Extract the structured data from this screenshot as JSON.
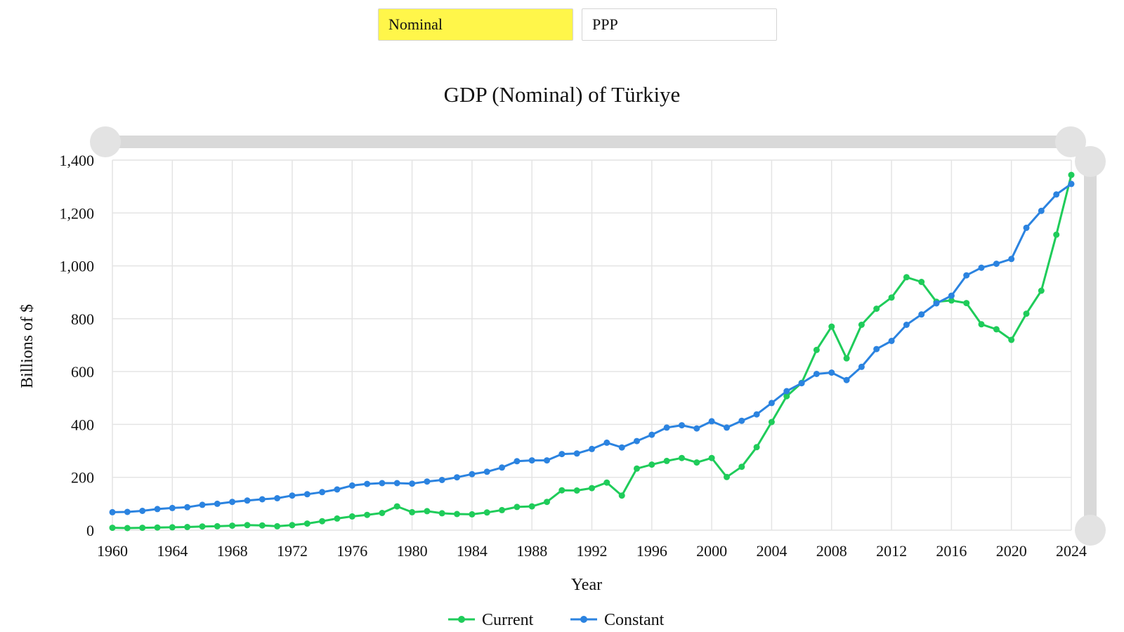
{
  "tabs": [
    {
      "label": "Nominal",
      "active": true
    },
    {
      "label": "PPP",
      "active": false
    }
  ],
  "chart_data": {
    "type": "line",
    "title": "GDP (Nominal) of Türkiye",
    "xlabel": "Year",
    "ylabel": "Billions of $",
    "xlim": [
      1960,
      2024
    ],
    "ylim": [
      0,
      1400
    ],
    "x_ticks": [
      "1960",
      "1964",
      "1968",
      "1972",
      "1976",
      "1980",
      "1984",
      "1988",
      "1992",
      "1996",
      "2000",
      "2004",
      "2008",
      "2012",
      "2016",
      "2020",
      "2024"
    ],
    "y_ticks": [
      "0",
      "200",
      "400",
      "600",
      "800",
      "1,000",
      "1,200",
      "1,400"
    ],
    "y_tick_values": [
      0,
      200,
      400,
      600,
      800,
      1000,
      1200,
      1400
    ],
    "grid": true,
    "legend_position": "bottom-center",
    "x": [
      1960,
      1961,
      1962,
      1963,
      1964,
      1965,
      1966,
      1967,
      1968,
      1969,
      1970,
      1971,
      1972,
      1973,
      1974,
      1975,
      1976,
      1977,
      1978,
      1979,
      1980,
      1981,
      1982,
      1983,
      1984,
      1985,
      1986,
      1987,
      1988,
      1989,
      1990,
      1991,
      1992,
      1993,
      1994,
      1995,
      1996,
      1997,
      1998,
      1999,
      2000,
      2001,
      2002,
      2003,
      2004,
      2005,
      2006,
      2007,
      2008,
      2009,
      2010,
      2011,
      2012,
      2013,
      2014,
      2015,
      2016,
      2017,
      2018,
      2019,
      2020,
      2021,
      2022,
      2023,
      2024
    ],
    "series": [
      {
        "name": "Current",
        "color": "#1fcc5a",
        "values": [
          9,
          8,
          9,
          10,
          11,
          12,
          14,
          15,
          17,
          19,
          18,
          15,
          19,
          25,
          34,
          44,
          52,
          58,
          65,
          90,
          68,
          72,
          64,
          61,
          60,
          67,
          76,
          88,
          90,
          107,
          151,
          150,
          159,
          180,
          131,
          233,
          248,
          262,
          273,
          256,
          273,
          201,
          240,
          314,
          409,
          507,
          557,
          682,
          770,
          650,
          777,
          838,
          880,
          957,
          939,
          864,
          869,
          859,
          779,
          760,
          720,
          819,
          906,
          1118,
          1344
        ]
      },
      {
        "name": "Constant",
        "color": "#2b83e0",
        "values": [
          68,
          69,
          73,
          80,
          84,
          87,
          96,
          100,
          107,
          112,
          117,
          121,
          131,
          136,
          144,
          154,
          169,
          175,
          178,
          178,
          176,
          184,
          190,
          200,
          212,
          221,
          237,
          261,
          264,
          264,
          288,
          290,
          307,
          331,
          313,
          337,
          361,
          388,
          397,
          385,
          412,
          388,
          414,
          438,
          481,
          526,
          556,
          591,
          596,
          568,
          618,
          685,
          716,
          777,
          816,
          858,
          887,
          964,
          993,
          1008,
          1026,
          1144,
          1208,
          1270,
          1310
        ]
      }
    ]
  }
}
